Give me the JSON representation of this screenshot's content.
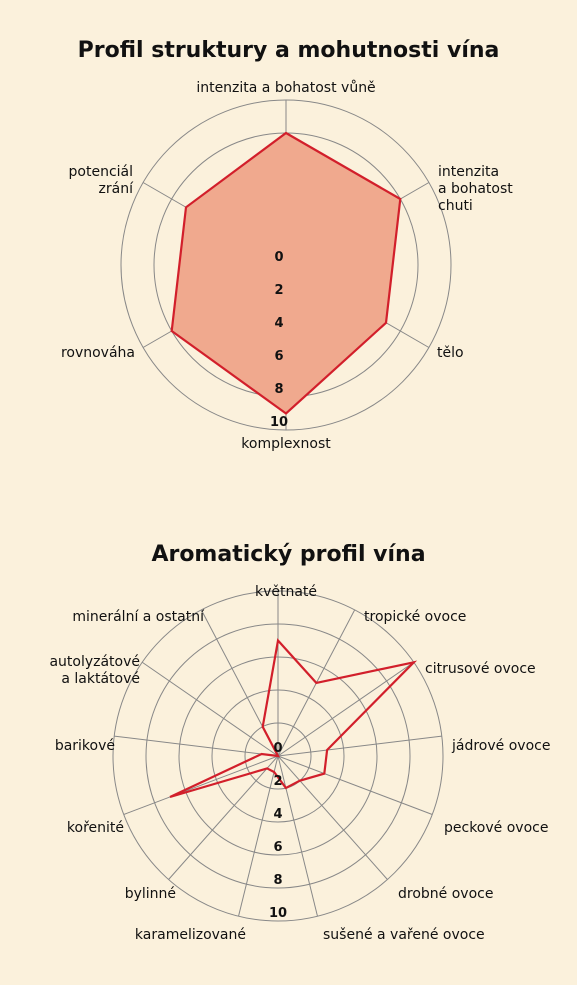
{
  "colors": {
    "background": "#fbf1dc",
    "grid": "#888888",
    "series_line": "#d21f2b",
    "series_fill": "#f0a98e"
  },
  "chart_data": [
    {
      "type": "radar",
      "title": "Profil struktury a mohutnosti vína",
      "range": [
        0,
        10
      ],
      "ticks": [
        "0",
        "2",
        "4",
        "6",
        "8",
        "10"
      ],
      "grid": "circular",
      "filled": true,
      "axes": [
        "intenzita a bohatost vůně",
        "intenzita a bohatost chuti",
        "tělo",
        "komplexnost",
        "rovnováha",
        "potenciál zrání"
      ],
      "values": [
        8,
        8,
        7,
        9,
        8,
        7
      ]
    },
    {
      "type": "radar",
      "title": "Aromatický profil vína",
      "range": [
        0,
        10
      ],
      "ticks": [
        "0",
        "2",
        "4",
        "6",
        "8",
        "10"
      ],
      "grid": "circular",
      "filled": false,
      "axes": [
        "květnaté",
        "tropické ovoce",
        "citrusové ovoce",
        "jádrové ovoce",
        "peckové ovoce",
        "drobné ovoce",
        "sušené a vařené ovoce",
        "karamelizované",
        "bylinné",
        "kořenité",
        "barikové",
        "autolyzátové a laktátové",
        "minerální a ostatní"
      ],
      "values": [
        7,
        5,
        10,
        3,
        3,
        2,
        2,
        1,
        1,
        7,
        1,
        0,
        2
      ]
    }
  ]
}
